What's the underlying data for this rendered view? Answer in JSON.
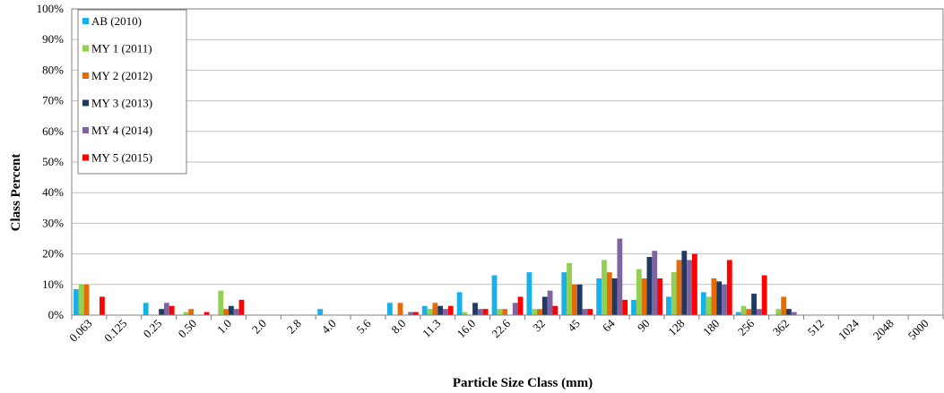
{
  "chart_data": {
    "type": "bar",
    "xlabel": "Particle Size Class (mm)",
    "ylabel": "Class Percent",
    "ylim": [
      0,
      100
    ],
    "ytick_step": 10,
    "y_tick_suffix": "%",
    "grid": true,
    "legend_position": "top-left",
    "categories": [
      "0.063",
      "0.125",
      "0.25",
      "0.50",
      "1.0",
      "2.0",
      "2.8",
      "4.0",
      "5.6",
      "8.0",
      "11.3",
      "16.0",
      "22.6",
      "32",
      "45",
      "64",
      "90",
      "128",
      "180",
      "256",
      "362",
      "512",
      "1024",
      "2048",
      "5000"
    ],
    "series": [
      {
        "name": "AB (2010)",
        "color": "#17b0e8",
        "values": [
          8.5,
          0,
          4,
          0,
          0,
          0,
          0,
          2,
          0,
          4,
          3,
          7.5,
          13,
          14,
          14,
          12,
          5,
          6,
          7.5,
          1,
          0,
          0,
          0,
          0,
          0
        ]
      },
      {
        "name": "MY 1 (2011)",
        "color": "#92d050",
        "values": [
          10,
          0,
          0,
          1,
          8,
          0,
          0,
          0,
          0,
          0,
          2,
          1,
          2,
          2,
          17,
          18,
          15,
          14,
          6,
          3,
          2,
          0,
          0,
          0,
          0
        ]
      },
      {
        "name": "MY 2 (2012)",
        "color": "#e36c09",
        "values": [
          10,
          0,
          0,
          2,
          2,
          0,
          0,
          0,
          0,
          4,
          4,
          0,
          2,
          2,
          10,
          14,
          12,
          18,
          12,
          2,
          6,
          0,
          0,
          0,
          0
        ]
      },
      {
        "name": "MY 3 (2013)",
        "color": "#1f3864",
        "values": [
          0,
          0,
          2,
          0,
          3,
          0,
          0,
          0,
          0,
          0,
          3,
          4,
          0,
          6,
          10,
          12,
          19,
          21,
          11,
          7,
          2,
          0,
          0,
          0,
          0
        ]
      },
      {
        "name": "MY 4 (2014)",
        "color": "#8064a2",
        "values": [
          0,
          0,
          4,
          0,
          2,
          0,
          0,
          0,
          0,
          1,
          2,
          2,
          4,
          8,
          2,
          25,
          21,
          18,
          10,
          2,
          1,
          0,
          0,
          0,
          0
        ]
      },
      {
        "name": "MY 5 (2015)",
        "color": "#ff0000",
        "values": [
          6,
          0,
          3,
          1,
          5,
          0,
          0,
          0,
          0,
          1,
          3,
          2,
          6,
          3,
          2,
          5,
          12,
          20,
          18,
          13,
          0,
          0,
          0,
          0,
          0
        ]
      }
    ]
  }
}
